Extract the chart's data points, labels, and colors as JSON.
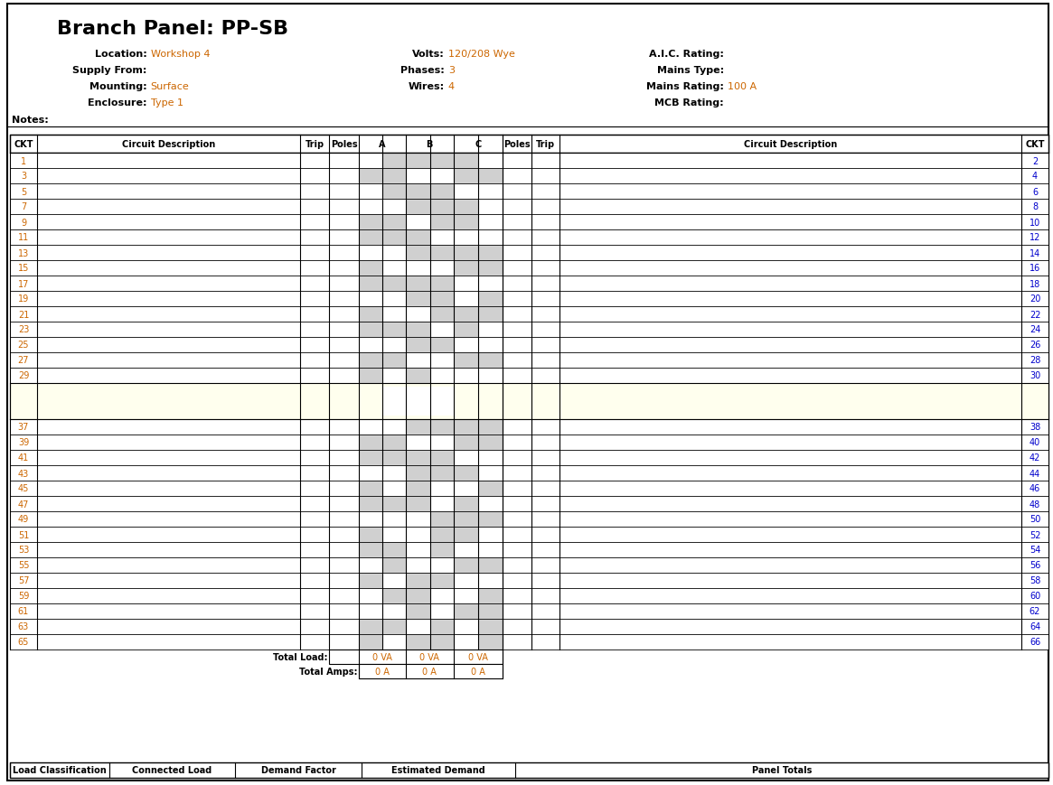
{
  "title": "Branch Panel: PP-SB",
  "header_info": {
    "col1": [
      [
        "Location:",
        "Workshop 4"
      ],
      [
        "Supply From:",
        ""
      ],
      [
        "Mounting:",
        "Surface"
      ],
      [
        "Enclosure:",
        "Type 1"
      ]
    ],
    "col2": [
      [
        "Volts:",
        "120/208 Wye"
      ],
      [
        "Phases:",
        "3"
      ],
      [
        "Wires:",
        "4"
      ],
      [
        "",
        ""
      ]
    ],
    "col3": [
      [
        "A.I.C. Rating:",
        ""
      ],
      [
        "Mains Type:",
        ""
      ],
      [
        "Mains Rating:",
        "100 A"
      ],
      [
        "MCB Rating:",
        ""
      ]
    ]
  },
  "notes_label": "Notes:",
  "col_headers": [
    "CKT",
    "Circuit Description",
    "Trip",
    "Poles",
    "A",
    "B",
    "C",
    "Poles",
    "Trip",
    "Circuit Description",
    "CKT"
  ],
  "left_circuits": [
    1,
    3,
    5,
    7,
    9,
    11,
    13,
    15,
    17,
    19,
    21,
    23,
    25,
    27,
    29
  ],
  "right_circuits": [
    2,
    4,
    6,
    8,
    10,
    12,
    14,
    16,
    18,
    20,
    22,
    24,
    26,
    28,
    30
  ],
  "left_circuits2": [
    37,
    39,
    41,
    43,
    45,
    47,
    49,
    51,
    53,
    55,
    57,
    59,
    61,
    63,
    65
  ],
  "right_circuits2": [
    38,
    40,
    42,
    44,
    46,
    48,
    50,
    52,
    54,
    56,
    58,
    60,
    62,
    64,
    66
  ],
  "gray_color": "#d0d0d0",
  "light_yellow": "#ffffee",
  "white": "#ffffff",
  "black": "#000000",
  "blue_label": "#0000cc",
  "orange_label": "#cc6600",
  "red_label": "#cc0000",
  "title_color": "#000000",
  "info_label_color": "#000000",
  "info_value_color": "#cc6600",
  "bottom_labels": [
    "Load Classification",
    "Connected Load",
    "Demand Factor",
    "Estimated Demand",
    "Panel Totals"
  ],
  "total_load_label": "Total Load:",
  "total_amps_label": "Total Amps:",
  "total_load_values": [
    "0 VA",
    "0 VA",
    "0 VA"
  ],
  "total_amps_values": [
    "0 A",
    "0 A",
    "0 A"
  ]
}
